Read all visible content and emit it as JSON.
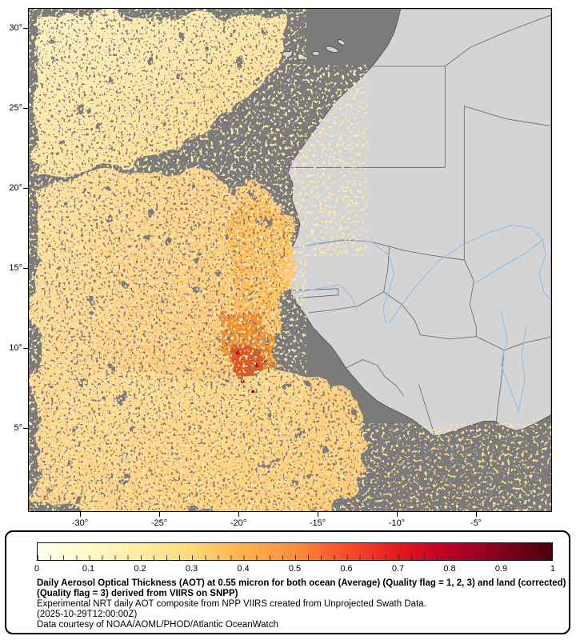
{
  "map": {
    "y_axis_ticks": [
      "30°",
      "25°",
      "20°",
      "15°",
      "10°",
      "5°"
    ],
    "x_axis_ticks": [
      "-30°",
      "-25°",
      "-20°",
      "-15°",
      "-10°",
      "-5°"
    ]
  },
  "legend": {
    "colorbar": {
      "min": 0,
      "max": 1,
      "tick_labels": [
        "0",
        "0.1",
        "0.2",
        "0.3",
        "0.4",
        "0.5",
        "0.6",
        "0.7",
        "0.8",
        "0.9",
        "1"
      ],
      "stops": [
        "#fffff0",
        "#fff9c8",
        "#ffeda0",
        "#fed976",
        "#feb24c",
        "#fd8d3c",
        "#fc4e2a",
        "#e31a1c",
        "#bd0026",
        "#83001f",
        "#4c000f"
      ]
    },
    "caption_bold": "Daily Aerosol Optical Thickness (AOT) at 0.55 micron for both ocean (Average) (Quality flag = 1, 2, 3) and land (corrected) (Quality flag = 3) derived from VIIRS on SNPP)",
    "caption_line2": "Experimental NRT daily AOT composite from NPP VIIRS created from Unprojected Swath Data.",
    "caption_line3": "(2025-10-29T12:00:00Z)",
    "caption_line4": "Data courtesy of NOAA/AOML/PHOD/Atlantic OceanWatch"
  },
  "colors": {
    "missing_data": "#7b7b7b",
    "land": "#d4d4d4",
    "river": "#8fbfe8",
    "border": "#6f6f6f",
    "aot_low": "#fff0bd",
    "aot_mid": "#ffc05e",
    "aot_high": "#e2591b",
    "aot_peak": "#a30c0c"
  }
}
